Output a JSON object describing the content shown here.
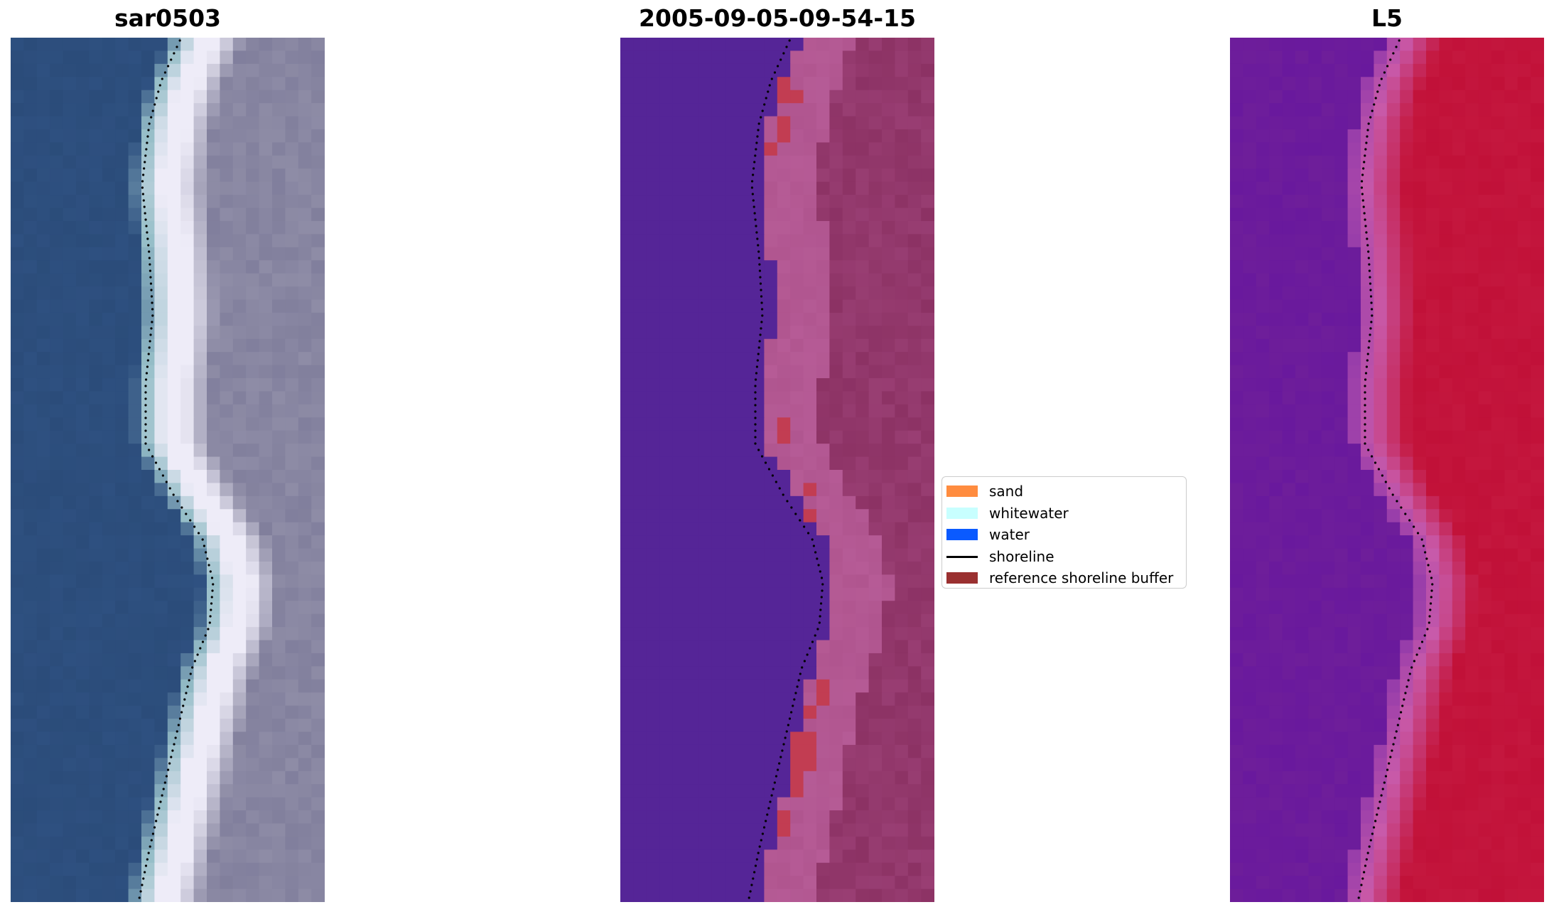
{
  "titles": {
    "rgb": "sar0503",
    "classification": "2005-09-05-09-54-15",
    "ndwi": "L5"
  },
  "legend": {
    "items": [
      {
        "label": "sand",
        "color": "#ff8c3f",
        "kind": "patch"
      },
      {
        "label": "whitewater",
        "color": "#c8ffff",
        "kind": "patch"
      },
      {
        "label": "water",
        "color": "#0a5aff",
        "kind": "patch"
      },
      {
        "label": "shoreline",
        "color": "#000000",
        "kind": "line"
      },
      {
        "label": "reference shoreline buffer",
        "color": "#9a3030",
        "kind": "patch"
      }
    ]
  },
  "colors": {
    "rgb_water": "#2e5080",
    "rgb_land": "#8e8ca6",
    "class_water": "#552597",
    "class_sand": "#b0558f",
    "class_buffer": "#c23d52",
    "ndwi_water": "#6e1e9a",
    "ndwi_land": "#c4173e",
    "shoreline": "#000000"
  },
  "icons": {
    "shoreline": "dotted-shoreline-icon"
  }
}
